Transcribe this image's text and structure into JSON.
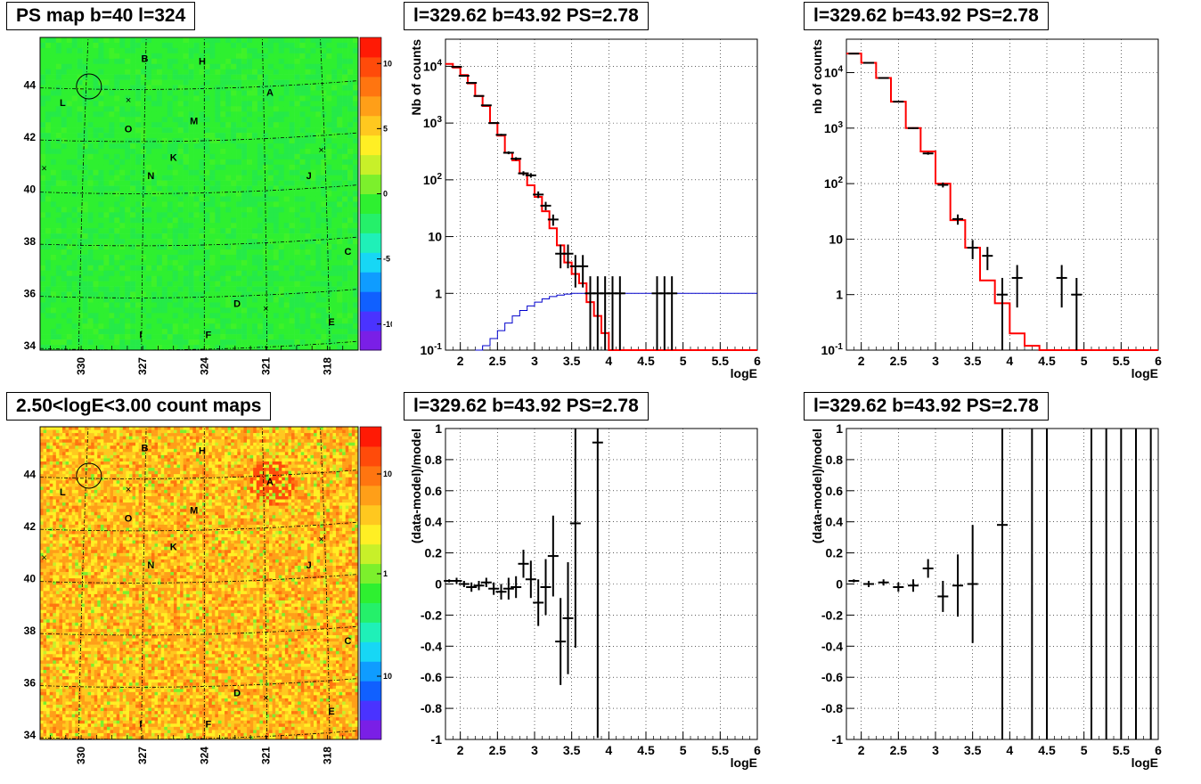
{
  "panels": {
    "map_top": {
      "title": "PS map b=40 l=324"
    },
    "map_bottom": {
      "title": "2.50<logE<3.00 count maps"
    },
    "spec_left": {
      "title": "l=329.62 b=43.92 PS=2.78"
    },
    "spec_right": {
      "title": "l=329.62 b=43.92 PS=2.78"
    },
    "res_left": {
      "title": "l=329.62 b=43.92 PS=2.78"
    },
    "res_right": {
      "title": "l=329.62 b=43.92 PS=2.78"
    }
  },
  "map_common": {
    "x_ticks": [
      "330",
      "327",
      "324",
      "321",
      "318"
    ],
    "y_ticks": [
      "44",
      "42",
      "40",
      "38",
      "36",
      "34"
    ],
    "sources": [
      "A",
      "B",
      "C",
      "D",
      "E",
      "F",
      "H",
      "I",
      "J",
      "K",
      "L",
      "M",
      "N",
      "O"
    ]
  },
  "chart_data": [
    {
      "type": "heatmap",
      "panel": "map_top",
      "title": "PS map b=40 l=324",
      "xlabel": "",
      "ylabel": "",
      "xlim": [
        332,
        316.5
      ],
      "ylim": [
        33.8,
        45.8
      ],
      "colorbar_ticks": [
        "10",
        "5",
        "0",
        "-5",
        "-10"
      ],
      "colorbar_range": [
        -12,
        12
      ],
      "sources": [
        {
          "label": "B",
          "l": 326.9,
          "b": 45.0
        },
        {
          "label": "H",
          "l": 324.1,
          "b": 44.9
        },
        {
          "label": "A",
          "l": 320.8,
          "b": 43.7
        },
        {
          "label": "L",
          "l": 330.9,
          "b": 43.3
        },
        {
          "label": "M",
          "l": 324.5,
          "b": 42.6
        },
        {
          "label": "O",
          "l": 327.7,
          "b": 42.3
        },
        {
          "label": "K",
          "l": 325.5,
          "b": 41.2
        },
        {
          "label": "N",
          "l": 326.6,
          "b": 40.5
        },
        {
          "label": "J",
          "l": 318.9,
          "b": 40.5
        },
        {
          "label": "C",
          "l": 317.0,
          "b": 37.6
        },
        {
          "label": "D",
          "l": 322.4,
          "b": 35.6
        },
        {
          "label": "E",
          "l": 317.8,
          "b": 34.9
        },
        {
          "label": "F",
          "l": 323.8,
          "b": 34.4
        },
        {
          "label": "I",
          "l": 327.1,
          "b": 34.4
        }
      ],
      "markers": [
        {
          "l": 327.7,
          "b": 43.4
        },
        {
          "l": 318.3,
          "b": 41.5
        },
        {
          "l": 331.8,
          "b": 40.8
        },
        {
          "l": 321.0,
          "b": 35.4
        }
      ],
      "circle": {
        "l": 329.62,
        "b": 43.92
      }
    },
    {
      "type": "heatmap",
      "panel": "map_bottom",
      "title": "2.50<logE<3.00 count maps",
      "xlabel": "",
      "ylabel": "",
      "xlim": [
        332,
        316.5
      ],
      "ylim": [
        33.8,
        45.8
      ],
      "colorbar_ticks": [
        "10",
        "1",
        "10^-1"
      ],
      "colorbar_scale": "log"
    },
    {
      "type": "line",
      "panel": "spec_left",
      "title": "l=329.62 b=43.92 PS=2.78",
      "xlabel": "logE",
      "ylabel": "Nb of counts",
      "xlim": [
        1.8,
        6
      ],
      "ylim": [
        0.1,
        30000
      ],
      "yscale": "log",
      "x_ticks": [
        "2",
        "2.5",
        "3",
        "3.5",
        "4",
        "4.5",
        "5",
        "5.5",
        "6"
      ],
      "y_ticks": [
        "10^4",
        "10^3",
        "10^2",
        "10",
        "1",
        "10^-1"
      ],
      "grid": true,
      "series": [
        {
          "name": "",
          "style": "red-step",
          "bin_width": 0.1,
          "x": [
            1.8,
            1.9,
            2.0,
            2.1,
            2.2,
            2.3,
            2.4,
            2.5,
            2.6,
            2.7,
            2.8,
            2.9,
            3.0,
            3.1,
            3.2,
            3.3,
            3.4,
            3.5,
            3.6,
            3.7,
            3.8,
            3.9,
            4.0,
            4.1,
            4.2,
            4.3,
            4.4,
            4.5,
            4.6,
            4.7,
            4.8,
            4.9,
            5.0,
            5.1,
            5.2,
            5.3,
            5.4,
            5.5,
            5.6,
            5.7,
            5.8,
            5.9
          ],
          "y": [
            11000,
            9500,
            7000,
            5000,
            3000,
            2000,
            1000,
            600,
            300,
            220,
            130,
            80,
            50,
            28,
            14,
            7,
            3.5,
            2.2,
            1.5,
            0.7,
            0.4,
            0.2,
            0.1,
            0.1,
            0.1,
            0.1,
            0.1,
            0.1,
            0.1,
            0.1,
            0.1,
            0.1,
            0.1,
            0.1,
            0.1,
            0.1,
            0.1,
            0.1,
            0.1,
            0.1,
            0.1,
            0.1
          ]
        },
        {
          "name": "",
          "style": "blue-step",
          "bin_width": 0.1,
          "x": [
            2.2,
            2.3,
            2.4,
            2.5,
            2.6,
            2.7,
            2.8,
            2.9,
            3.0,
            3.1,
            3.2,
            3.3,
            3.4,
            3.5,
            3.6,
            3.7,
            3.8,
            3.9,
            4.0,
            4.1,
            4.2,
            4.3,
            4.4,
            4.5,
            4.6,
            4.7,
            4.8,
            4.9,
            5.0,
            5.1,
            5.2,
            5.3,
            5.4,
            5.5,
            5.6,
            5.7,
            5.8,
            5.9
          ],
          "y": [
            0.1,
            0.12,
            0.16,
            0.22,
            0.3,
            0.4,
            0.5,
            0.6,
            0.7,
            0.8,
            0.88,
            0.93,
            0.97,
            1,
            1,
            1,
            1,
            1,
            1,
            1,
            1,
            1,
            1,
            1,
            1,
            1,
            1,
            1,
            1,
            1,
            1,
            1,
            1,
            1,
            1,
            1,
            1,
            1
          ]
        },
        {
          "name": "",
          "style": "data-points",
          "x": [
            1.95,
            2.05,
            2.15,
            2.25,
            2.35,
            2.45,
            2.55,
            2.65,
            2.75,
            2.85,
            2.95,
            3.05,
            3.15,
            3.25,
            3.35,
            3.45,
            3.55,
            3.65,
            3.75,
            3.85,
            3.95,
            4.05,
            4.15,
            4.65,
            4.75,
            4.85
          ],
          "y": [
            9800,
            6800,
            5100,
            3000,
            2050,
            1000,
            620,
            300,
            235,
            130,
            120,
            55,
            35,
            20,
            5,
            5,
            3,
            3,
            1,
            1,
            1,
            1,
            1,
            1,
            1,
            1
          ]
        }
      ]
    },
    {
      "type": "line",
      "panel": "spec_right",
      "title": "l=329.62 b=43.92 PS=2.78",
      "xlabel": "logE",
      "ylabel": "nb of counts",
      "xlim": [
        1.8,
        6
      ],
      "ylim": [
        0.1,
        40000
      ],
      "yscale": "log",
      "x_ticks": [
        "2",
        "2.5",
        "3",
        "3.5",
        "4",
        "4.5",
        "5",
        "5.5",
        "6"
      ],
      "y_ticks": [
        "10^4",
        "10^3",
        "10^2",
        "10",
        "1",
        "10^-1"
      ],
      "grid": true,
      "series": [
        {
          "name": "",
          "style": "red-step",
          "bin_width": 0.2,
          "x": [
            1.8,
            2.0,
            2.2,
            2.4,
            2.6,
            2.8,
            3.0,
            3.2,
            3.4,
            3.6,
            3.8,
            4.0,
            4.2,
            4.4,
            4.6,
            4.8,
            5.0,
            5.2,
            5.4,
            5.6,
            5.8
          ],
          "y": [
            22000,
            15000,
            8000,
            3000,
            1000,
            380,
            100,
            22,
            7,
            1.8,
            0.7,
            0.2,
            0.12,
            0.1,
            0.1,
            0.1,
            0.1,
            0.1,
            0.1,
            0.1,
            0.1
          ]
        },
        {
          "name": "",
          "style": "data-points",
          "x": [
            1.9,
            2.1,
            2.3,
            2.5,
            2.7,
            2.9,
            3.1,
            3.3,
            3.5,
            3.7,
            3.9,
            4.1,
            4.7,
            4.9
          ],
          "y": [
            22000,
            15000,
            8000,
            3000,
            1000,
            350,
            95,
            23,
            7,
            5,
            1,
            2,
            2,
            1
          ]
        }
      ]
    },
    {
      "type": "scatter",
      "panel": "res_left",
      "title": "l=329.62 b=43.92 PS=2.78",
      "xlabel": "logE",
      "ylabel": "(data-model)/model",
      "xlim": [
        1.8,
        6
      ],
      "ylim": [
        -1,
        1
      ],
      "x_ticks": [
        "2",
        "2.5",
        "3",
        "3.5",
        "4",
        "4.5",
        "5",
        "5.5",
        "6"
      ],
      "y_ticks": [
        "1",
        "0.8",
        "0.6",
        "0.4",
        "0.2",
        "0",
        "-0.2",
        "-0.4",
        "-0.6",
        "-0.8",
        "-1"
      ],
      "grid": true,
      "series": [
        {
          "name": "",
          "x": [
            1.85,
            1.95,
            2.05,
            2.15,
            2.25,
            2.35,
            2.45,
            2.55,
            2.65,
            2.75,
            2.85,
            2.95,
            3.05,
            3.15,
            3.25,
            3.35,
            3.45,
            3.55,
            3.85
          ],
          "y": [
            0.02,
            0.02,
            0.0,
            -0.02,
            -0.01,
            0.01,
            -0.03,
            -0.05,
            -0.03,
            -0.02,
            0.13,
            0.03,
            -0.12,
            -0.02,
            0.18,
            -0.37,
            -0.22,
            0.39,
            0.91
          ],
          "err": [
            0.01,
            0.02,
            0.02,
            0.03,
            0.03,
            0.03,
            0.04,
            0.05,
            0.07,
            0.07,
            0.09,
            0.12,
            0.15,
            0.18,
            0.26,
            0.28,
            0.36,
            0.8,
            1.9
          ]
        }
      ]
    },
    {
      "type": "scatter",
      "panel": "res_right",
      "title": "l=329.62 b=43.92 PS=2.78",
      "xlabel": "logE",
      "ylabel": "(data-model)/model",
      "xlim": [
        1.8,
        6
      ],
      "ylim": [
        -1,
        1
      ],
      "x_ticks": [
        "2",
        "2.5",
        "3",
        "3.5",
        "4",
        "4.5",
        "5",
        "5.5",
        "6"
      ],
      "y_ticks": [
        "1",
        "0.8",
        "0.6",
        "0.4",
        "0.2",
        "0",
        "-0.2",
        "-0.4",
        "-0.6",
        "-0.8",
        "-1"
      ],
      "grid": true,
      "series": [
        {
          "name": "",
          "x": [
            1.9,
            2.1,
            2.3,
            2.5,
            2.7,
            2.9,
            3.1,
            3.3,
            3.5,
            3.9
          ],
          "y": [
            0.02,
            0.0,
            0.01,
            -0.02,
            -0.01,
            0.1,
            -0.08,
            -0.01,
            0.0,
            0.38
          ],
          "err": [
            0.01,
            0.02,
            0.02,
            0.03,
            0.04,
            0.06,
            0.1,
            0.2,
            0.38,
            1.6
          ]
        },
        {
          "name": "",
          "style": "vlines",
          "x": [
            4.3,
            4.5,
            5.1,
            5.3,
            5.5,
            5.7,
            5.9
          ]
        }
      ]
    }
  ]
}
